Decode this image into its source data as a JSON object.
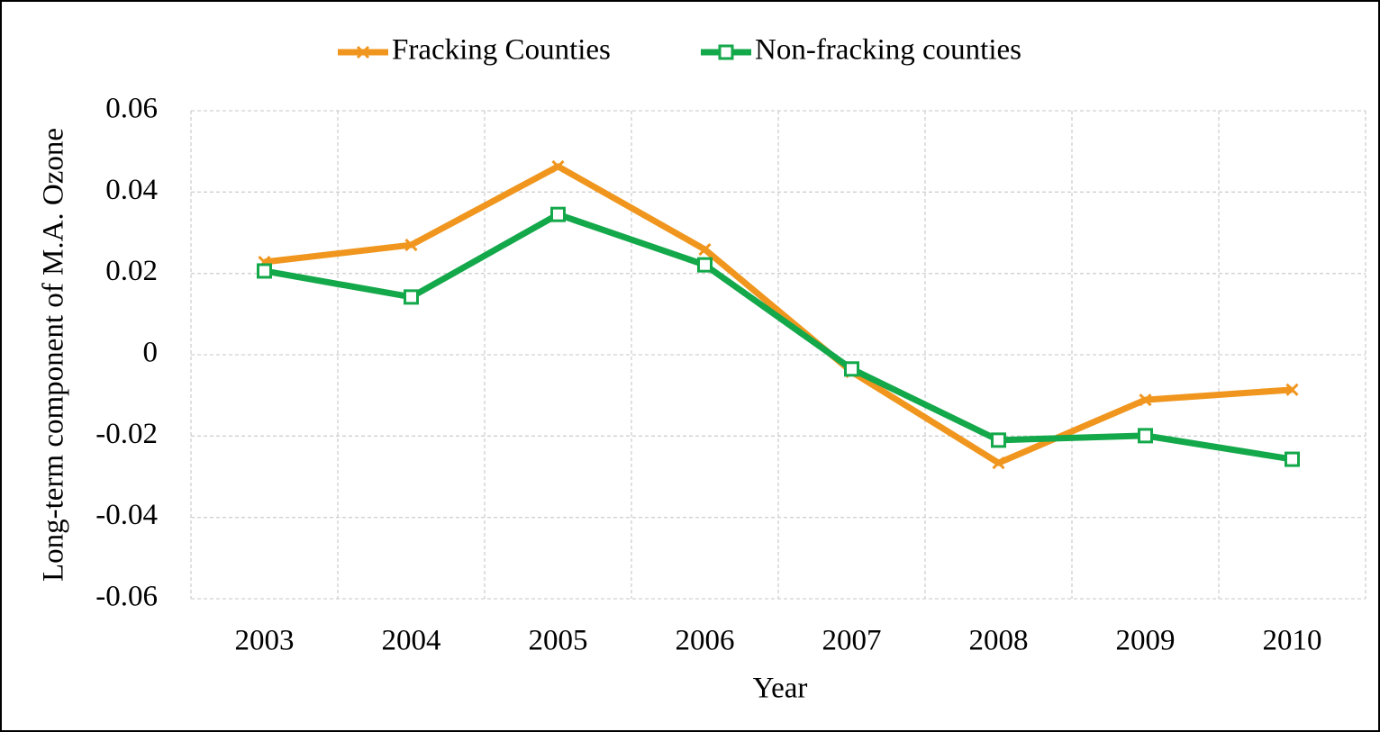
{
  "chart_data": {
    "type": "line",
    "x_label": "Year",
    "y_label": "Long-term component of M.A. Ozone",
    "categories": [
      "2003",
      "2004",
      "2005",
      "2006",
      "2007",
      "2008",
      "2009",
      "2010"
    ],
    "series": [
      {
        "name": "Fracking Counties",
        "color": "#f0961e",
        "marker": "x",
        "values": [
          0.0228,
          0.027,
          0.0463,
          0.0259,
          -0.0042,
          -0.0266,
          -0.0111,
          -0.0086
        ]
      },
      {
        "name": "Non-fracking counties",
        "color": "#13a84a",
        "marker": "square",
        "values": [
          0.0206,
          0.0142,
          0.0345,
          0.0221,
          -0.0035,
          -0.021,
          -0.0199,
          -0.0257
        ]
      }
    ],
    "ylim": [
      -0.06,
      0.06
    ],
    "yticks": [
      0.06,
      0.04,
      0.02,
      0,
      -0.02,
      -0.04,
      -0.06
    ],
    "grid": true,
    "legend": "top"
  }
}
